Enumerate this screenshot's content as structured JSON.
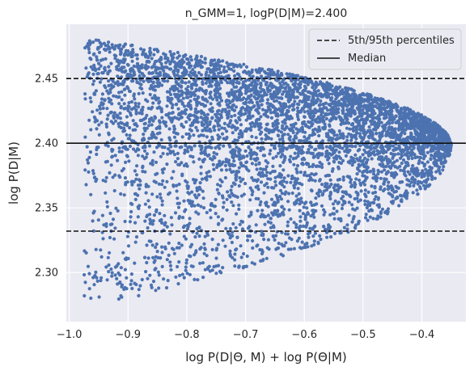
{
  "chart_data": {
    "type": "scatter",
    "title": "n_GMM=1, logP(D|M)=2.400",
    "xlabel": "log P(D|Θ, M) + log P(Θ|M)",
    "ylabel": "log P(D|M)",
    "xlim": [
      -1.005,
      -0.325
    ],
    "ylim": [
      2.262,
      2.492
    ],
    "xticks": [
      -1.0,
      -0.9,
      -0.8,
      -0.7,
      -0.6,
      -0.5,
      -0.4
    ],
    "xtick_labels": [
      "−1.0",
      "−0.9",
      "−0.8",
      "−0.7",
      "−0.6",
      "−0.5",
      "−0.4"
    ],
    "yticks": [
      2.3,
      2.35,
      2.4,
      2.45
    ],
    "ytick_labels": [
      "2.30",
      "2.35",
      "2.40",
      "2.45"
    ],
    "grid": true,
    "legend_position": "top-right",
    "point_color": "#4c72b0",
    "background": "#eaeaf2",
    "scatter_region": {
      "x_min": -0.975,
      "x_max": -0.35,
      "y_center": 2.398,
      "y_upper_at_x_min": 2.482,
      "y_lower_at_x_min": 2.272,
      "n_points": 5000
    },
    "reference_lines": [
      {
        "name": "5th/95th percentiles",
        "value": 2.45,
        "style": "dashed"
      },
      {
        "name": "5th/95th percentiles",
        "value": 2.332,
        "style": "dashed"
      },
      {
        "name": "Median",
        "value": 2.4,
        "style": "solid"
      }
    ],
    "legend": [
      {
        "label": "5th/95th percentiles",
        "style": "dashed"
      },
      {
        "label": "Median",
        "style": "solid"
      }
    ]
  }
}
